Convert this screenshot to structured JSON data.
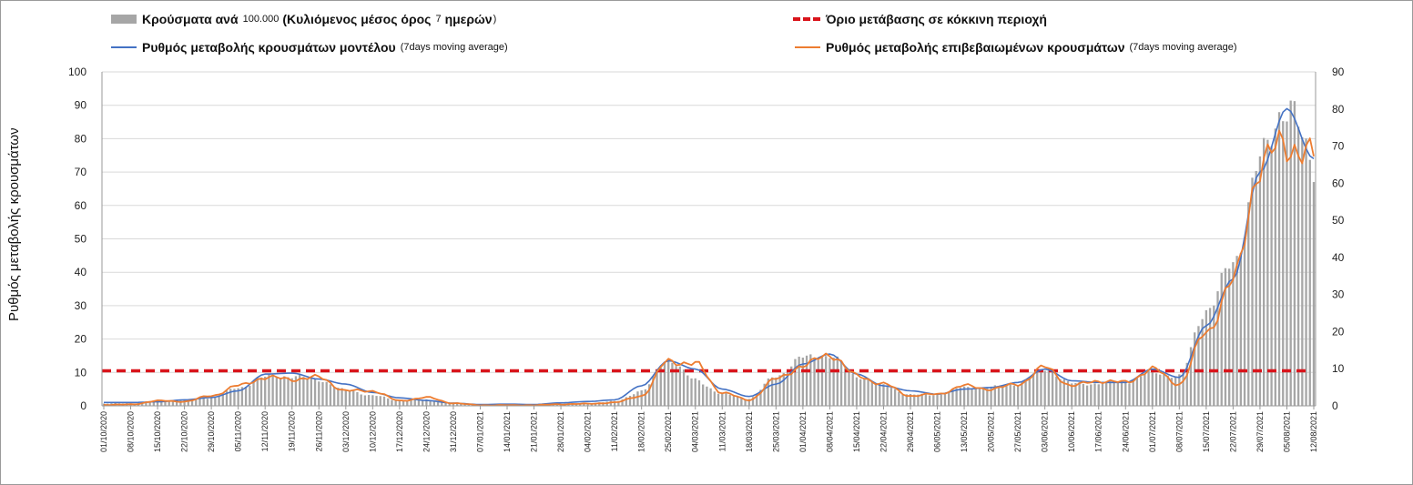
{
  "legend": {
    "bars_main": "Κρούσματα ανά",
    "bars_note1": "100.000",
    "bars_main2": "(Κυλιόμενος μέσος όρος",
    "bars_note2": "7",
    "bars_main3": "ημερών",
    "bars_note3": ")",
    "threshold": "Όριο μετάβασης σε κόκκινη περιοχή",
    "model_main": "Ρυθμός μεταβολής κρουσμάτων μοντέλου",
    "model_note": "(7days moving average)",
    "confirmed_main": "Ρυθμός μεταβολής επιβεβαιωμένων κρουσμάτων",
    "confirmed_note": "(7days moving average)"
  },
  "colors": {
    "bars": "#a6a6a6",
    "model": "#4472c4",
    "confirmed": "#ed7d31",
    "threshold": "#d9141b",
    "grid": "#d9d9d9"
  },
  "chart_data": {
    "type": "bar",
    "ylabel": "Ρυθμός μεταβολής κρουσμάτων",
    "ylim": [
      0,
      100
    ],
    "y_ticks": [
      0,
      10,
      20,
      30,
      40,
      50,
      60,
      70,
      80,
      90,
      100
    ],
    "y2lim": [
      0,
      90
    ],
    "y2_ticks": [
      0,
      10,
      20,
      30,
      40,
      50,
      60,
      70,
      80,
      90
    ],
    "x_tick_labels": [
      "01/10/2020",
      "08/10/2020",
      "15/10/2020",
      "22/10/2020",
      "29/10/2020",
      "05/11/2020",
      "12/11/2020",
      "19/11/2020",
      "26/11/2020",
      "03/12/2020",
      "10/12/2020",
      "17/12/2020",
      "24/12/2020",
      "31/12/2020",
      "07/01/2021",
      "14/01/2021",
      "21/01/2021",
      "28/01/2021",
      "04/02/2021",
      "11/02/2021",
      "18/02/2021",
      "25/02/2021",
      "04/03/2021",
      "11/03/2021",
      "18/03/2021",
      "25/03/2021",
      "01/04/2021",
      "08/04/2021",
      "15/04/2021",
      "22/04/2021",
      "29/04/2021",
      "06/05/2021",
      "13/05/2021",
      "20/05/2021",
      "27/05/2021",
      "03/06/2021",
      "10/06/2021",
      "17/06/2021",
      "24/06/2021",
      "01/07/2021",
      "08/07/2021",
      "15/07/2021",
      "22/07/2021",
      "29/07/2021",
      "05/08/2021",
      "12/08/2021"
    ],
    "threshold": 10.5,
    "series": [
      {
        "name": "Κρούσματα ανά 100.000 (Κυλιόμενος μέσος όρος 7 ημερών)",
        "kind": "bar",
        "axis": "right",
        "weekly_values": [
          0.6,
          0.7,
          1.4,
          1.6,
          2.2,
          4.8,
          7.8,
          8.0,
          7.0,
          4.2,
          2.8,
          1.4,
          1.6,
          0.8,
          0.3,
          0.3,
          0.3,
          0.6,
          0.7,
          1.2,
          4.0,
          12.5,
          7.0,
          3.2,
          2.0,
          8.0,
          13.0,
          13.5,
          8.0,
          5.5,
          3.0,
          3.0,
          5.0,
          5.0,
          6.0,
          10.0,
          6.0,
          6.0,
          6.5,
          9.0,
          8.0,
          26.0,
          38.0,
          66.0,
          82.0,
          64.0
        ]
      },
      {
        "name": "Ρυθμός μεταβολής κρουσμάτων μοντέλου (7days moving average)",
        "kind": "line",
        "axis": "left",
        "weekly_values": [
          1.0,
          1.0,
          1.2,
          1.8,
          2.5,
          4.5,
          9.5,
          9.8,
          8.0,
          6.5,
          4.0,
          2.4,
          1.6,
          0.8,
          0.4,
          0.5,
          0.4,
          0.9,
          1.3,
          1.8,
          6.0,
          13.5,
          11.0,
          5.0,
          2.8,
          6.5,
          12.5,
          15.5,
          9.5,
          6.0,
          4.5,
          3.5,
          5.0,
          5.5,
          7.0,
          11.0,
          7.5,
          7.0,
          7.0,
          11.0,
          8.5,
          24.0,
          38.0,
          70.0,
          89.0,
          74.0
        ]
      },
      {
        "name": "Ρυθμός μεταβολής επιβεβαιωμένων κρουσμάτων (7days moving average)",
        "kind": "line",
        "axis": "left",
        "weekly_values": [
          0.3,
          0.4,
          1.5,
          1.3,
          3.0,
          6.0,
          8.5,
          8.0,
          8.5,
          4.5,
          4.5,
          1.5,
          2.5,
          0.8,
          0.2,
          0.2,
          0.2,
          0.5,
          0.6,
          1.0,
          3.0,
          13.5,
          12.5,
          4.0,
          1.7,
          8.0,
          12.0,
          15.5,
          9.0,
          6.5,
          3.0,
          3.5,
          6.0,
          5.0,
          6.5,
          11.5,
          6.0,
          7.5,
          7.0,
          11.0,
          6.5,
          22.0,
          37.0,
          72.0,
          79.0,
          73.5
        ]
      }
    ]
  }
}
